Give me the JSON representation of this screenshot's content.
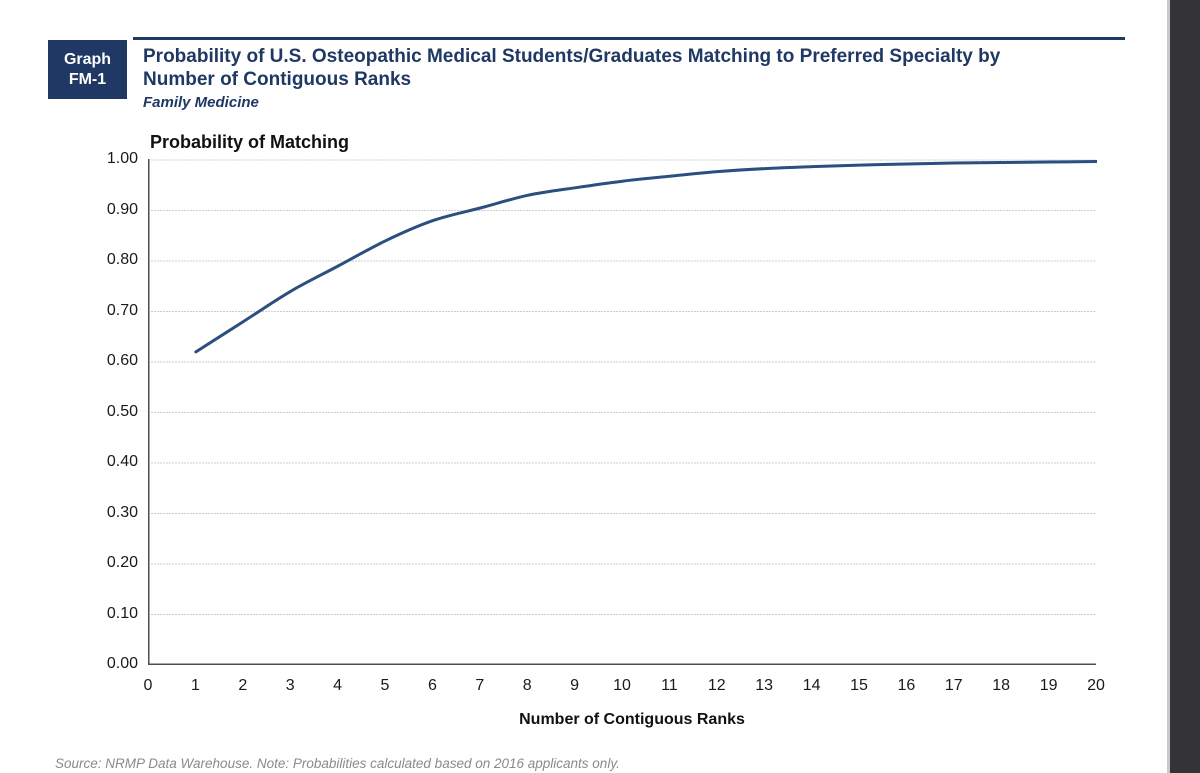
{
  "header": {
    "badge_line1": "Graph",
    "badge_line2": "FM-1",
    "title_line1": "Probability of U.S. Osteopathic Medical Students/Graduates Matching to Preferred Specialty by",
    "title_line2": "Number of Contiguous Ranks",
    "subtitle": "Family Medicine"
  },
  "footer": {
    "source_note": "Source: NRMP Data Warehouse. Note: Probabilities calculated based on 2016 applicants only."
  },
  "colors": {
    "navy": "#1F3864",
    "curve": "#2B4F7E",
    "grid": "#9b9b9b",
    "axis": "#4d4d4d",
    "tick_text": "#1a1a1a",
    "source_text": "#8a8a8a",
    "viewer_edge_bg": "#343437"
  },
  "chart_data": {
    "type": "line",
    "title": "Probability of Matching",
    "xlabel": "Number of Contiguous Ranks",
    "ylabel": "Probability of Matching",
    "x": [
      1,
      2,
      3,
      4,
      5,
      6,
      7,
      8,
      9,
      10,
      11,
      12,
      13,
      14,
      15,
      16,
      17,
      18,
      19,
      20
    ],
    "y": [
      0.62,
      0.68,
      0.74,
      0.79,
      0.84,
      0.88,
      0.905,
      0.93,
      0.945,
      0.958,
      0.968,
      0.977,
      0.983,
      0.987,
      0.99,
      0.992,
      0.994,
      0.995,
      0.996,
      0.997
    ],
    "xlim": [
      0,
      20
    ],
    "ylim": [
      0.0,
      1.0
    ],
    "x_ticks": [
      0,
      1,
      2,
      3,
      4,
      5,
      6,
      7,
      8,
      9,
      10,
      11,
      12,
      13,
      14,
      15,
      16,
      17,
      18,
      19,
      20
    ],
    "y_ticks": [
      "1.00",
      "0.90",
      "0.80",
      "0.70",
      "0.60",
      "0.50",
      "0.40",
      "0.30",
      "0.20",
      "0.10",
      "0.00"
    ],
    "grid": true,
    "legend": false,
    "series_name": "Probability of Matching"
  }
}
